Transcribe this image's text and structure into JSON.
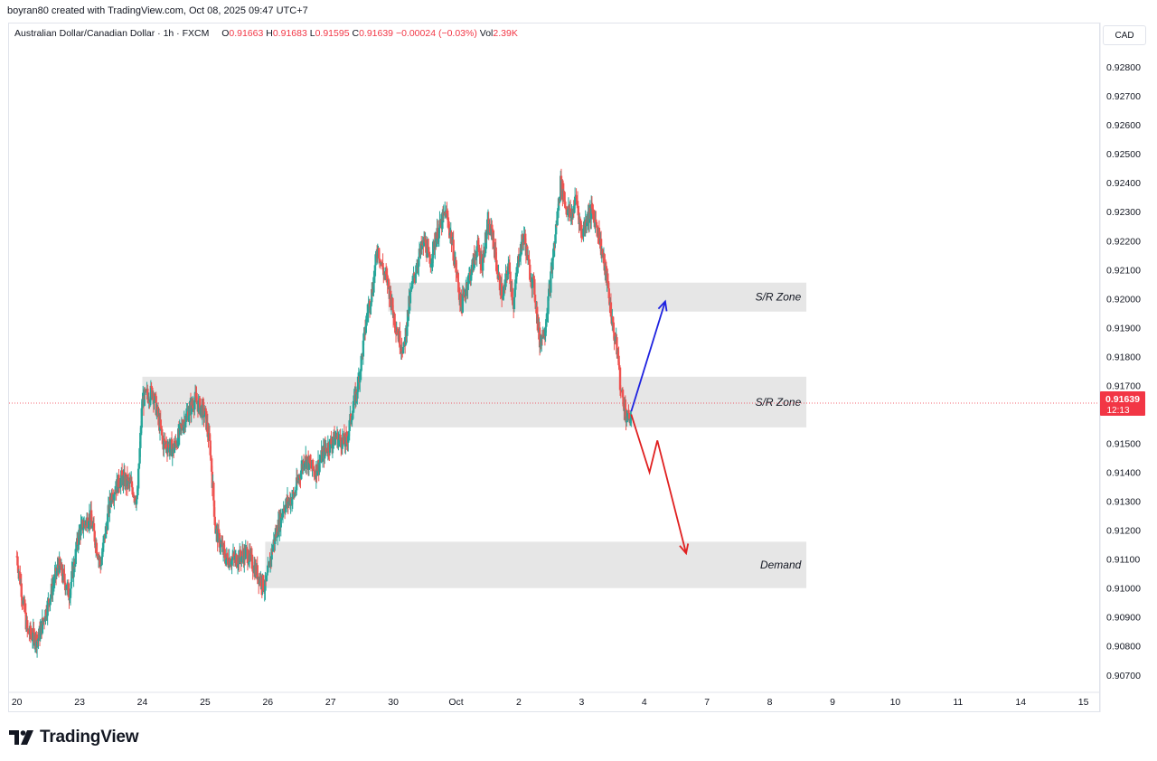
{
  "header": {
    "attribution": "boyran80 created with TradingView.com, Oct 08, 2025 09:47 UTC+7"
  },
  "legend": {
    "symbol": "Australian Dollar/Canadian Dollar · 1h · FXCM",
    "open_label": "O",
    "open": "0.91663",
    "high_label": "H",
    "high": "0.91683",
    "low_label": "L",
    "low": "0.91595",
    "close_label": "C",
    "close": "0.91639",
    "change": "−0.00024 (−0.03%)",
    "vol_label": "Vol",
    "vol": "2.39K"
  },
  "currency": "CAD",
  "brand": {
    "name": "TradingView",
    "logo_icon": "tradingview-logo-icon"
  },
  "colors": {
    "up": "#26a69a",
    "down": "#ef5350",
    "zone": "#e6e6e6",
    "price_badge": "#f23645",
    "bull_arrow": "#1e22e0",
    "bear_arrow": "#e02020",
    "axis_text": "#131722"
  },
  "chart_data": {
    "type": "candlestick",
    "y_axis": {
      "min": 0.9064,
      "max": 0.9295,
      "ticks": [
        "0.92800",
        "0.92700",
        "0.92600",
        "0.92500",
        "0.92400",
        "0.92300",
        "0.92200",
        "0.92100",
        "0.92000",
        "0.91900",
        "0.91800",
        "0.91700",
        "0.91500",
        "0.91400",
        "0.91300",
        "0.91200",
        "0.91100",
        "0.91000",
        "0.90900",
        "0.90800",
        "0.90700"
      ]
    },
    "x_axis": {
      "ticks": [
        {
          "label": "20",
          "slot": 0
        },
        {
          "label": "23",
          "slot": 24
        },
        {
          "label": "24",
          "slot": 48
        },
        {
          "label": "25",
          "slot": 72
        },
        {
          "label": "26",
          "slot": 96
        },
        {
          "label": "27",
          "slot": 120
        },
        {
          "label": "30",
          "slot": 144
        },
        {
          "label": "Oct",
          "slot": 168
        },
        {
          "label": "2",
          "slot": 192
        },
        {
          "label": "3",
          "slot": 216
        },
        {
          "label": "4",
          "slot": 240
        },
        {
          "label": "7",
          "slot": 264
        },
        {
          "label": "8",
          "slot": 288
        },
        {
          "label": "9",
          "slot": 312
        },
        {
          "label": "10",
          "slot": 336
        },
        {
          "label": "11",
          "slot": 360
        },
        {
          "label": "14",
          "slot": 384
        },
        {
          "label": "15",
          "slot": 408
        }
      ],
      "slot_range": [
        -3,
        414
      ]
    },
    "current_price": {
      "value": "0.91639",
      "countdown": "12:13"
    },
    "price_anchors": [
      [
        0,
        0.9111
      ],
      [
        4,
        0.9085
      ],
      [
        8,
        0.9082
      ],
      [
        12,
        0.9095
      ],
      [
        16,
        0.9108
      ],
      [
        20,
        0.9098
      ],
      [
        24,
        0.912
      ],
      [
        28,
        0.9125
      ],
      [
        32,
        0.9108
      ],
      [
        36,
        0.9132
      ],
      [
        40,
        0.9138
      ],
      [
        44,
        0.9135
      ],
      [
        46,
        0.913
      ],
      [
        48,
        0.9165
      ],
      [
        52,
        0.9168
      ],
      [
        56,
        0.915
      ],
      [
        60,
        0.9148
      ],
      [
        64,
        0.9158
      ],
      [
        68,
        0.9165
      ],
      [
        72,
        0.916
      ],
      [
        74,
        0.9148
      ],
      [
        76,
        0.912
      ],
      [
        80,
        0.911
      ],
      [
        84,
        0.911
      ],
      [
        88,
        0.9112
      ],
      [
        92,
        0.9105
      ],
      [
        95,
        0.91
      ],
      [
        98,
        0.9115
      ],
      [
        102,
        0.9128
      ],
      [
        106,
        0.9132
      ],
      [
        110,
        0.9145
      ],
      [
        114,
        0.914
      ],
      [
        118,
        0.9148
      ],
      [
        122,
        0.9152
      ],
      [
        126,
        0.915
      ],
      [
        128,
        0.916
      ],
      [
        130,
        0.9168
      ],
      [
        132,
        0.918
      ],
      [
        134,
        0.9195
      ],
      [
        136,
        0.9203
      ],
      [
        138,
        0.9218
      ],
      [
        140,
        0.921
      ],
      [
        142,
        0.9205
      ],
      [
        144,
        0.9195
      ],
      [
        146,
        0.9187
      ],
      [
        148,
        0.9182
      ],
      [
        150,
        0.9198
      ],
      [
        152,
        0.9208
      ],
      [
        154,
        0.9215
      ],
      [
        156,
        0.922
      ],
      [
        158,
        0.9212
      ],
      [
        160,
        0.922
      ],
      [
        162,
        0.9225
      ],
      [
        164,
        0.923
      ],
      [
        166,
        0.9222
      ],
      [
        168,
        0.921
      ],
      [
        170,
        0.9197
      ],
      [
        172,
        0.9205
      ],
      [
        174,
        0.921
      ],
      [
        176,
        0.9218
      ],
      [
        178,
        0.9212
      ],
      [
        180,
        0.9225
      ],
      [
        182,
        0.9222
      ],
      [
        184,
        0.9208
      ],
      [
        186,
        0.92
      ],
      [
        188,
        0.9212
      ],
      [
        190,
        0.9198
      ],
      [
        192,
        0.9215
      ],
      [
        194,
        0.9222
      ],
      [
        196,
        0.921
      ],
      [
        198,
        0.9203
      ],
      [
        200,
        0.9185
      ],
      [
        202,
        0.919
      ],
      [
        204,
        0.9205
      ],
      [
        206,
        0.9222
      ],
      [
        208,
        0.924
      ],
      [
        210,
        0.9232
      ],
      [
        212,
        0.9228
      ],
      [
        214,
        0.9235
      ],
      [
        216,
        0.9222
      ],
      [
        218,
        0.9228
      ],
      [
        220,
        0.923
      ],
      [
        222,
        0.9225
      ],
      [
        224,
        0.9215
      ],
      [
        226,
        0.9205
      ],
      [
        228,
        0.919
      ],
      [
        230,
        0.918
      ],
      [
        231,
        0.9168
      ],
      [
        232,
        0.9165
      ],
      [
        233,
        0.916
      ],
      [
        234,
        0.9158
      ],
      [
        235,
        0.916
      ]
    ],
    "zones": [
      {
        "label": "S/R Zone",
        "low": 0.91955,
        "high": 0.92055
      },
      {
        "label": "S/R Zone",
        "low": 0.91555,
        "high": 0.9173
      },
      {
        "label": "Demand",
        "low": 0.91,
        "high": 0.9116
      }
    ],
    "projections": [
      {
        "name": "bullish",
        "path": [
          [
            235,
            0.9161
          ],
          [
            248,
            0.9199
          ]
        ]
      },
      {
        "name": "bearish",
        "path": [
          [
            235,
            0.916
          ],
          [
            242,
            0.914
          ],
          [
            245,
            0.9151
          ],
          [
            256,
            0.9112
          ]
        ]
      }
    ]
  }
}
